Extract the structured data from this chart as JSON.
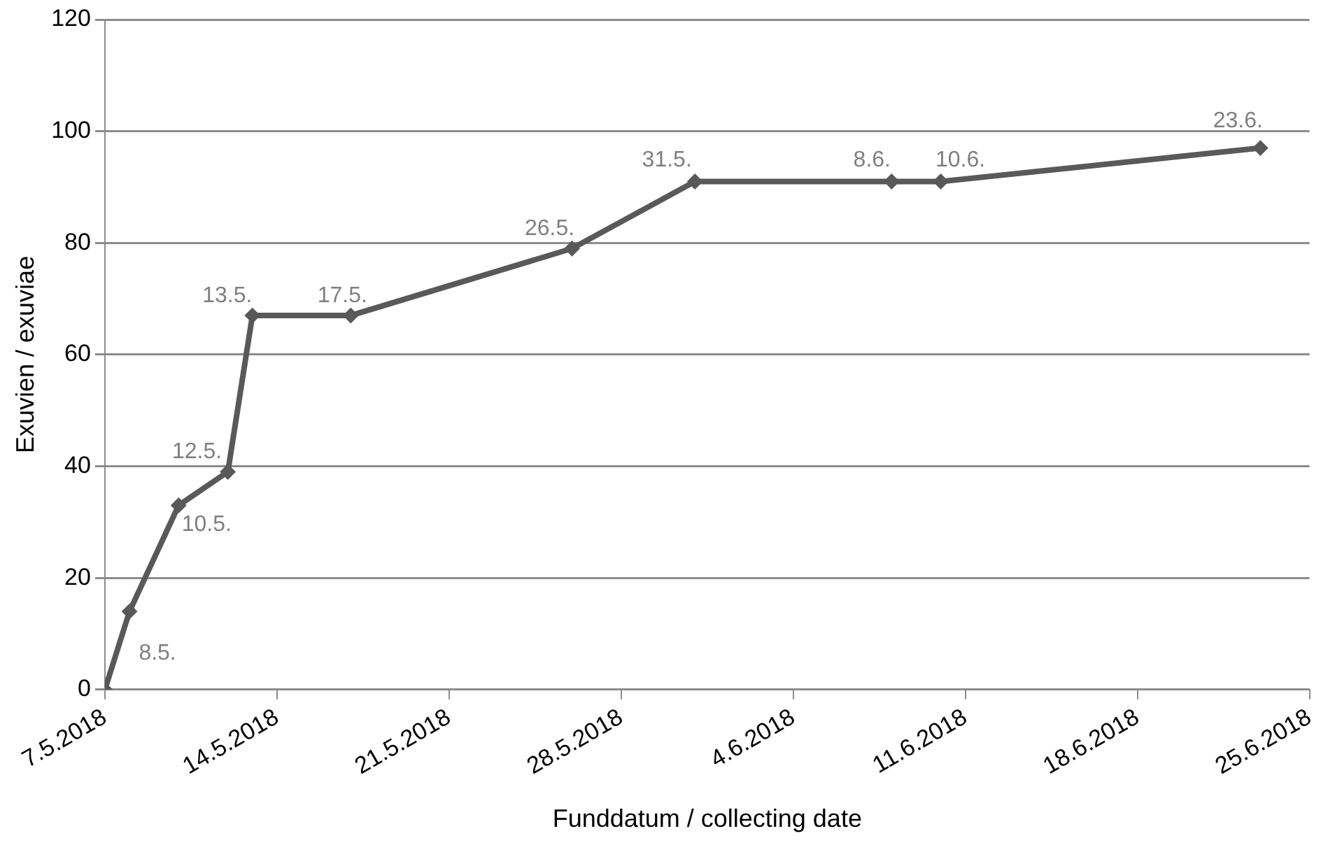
{
  "chart_data": {
    "type": "line",
    "xlabel": "Funddatum / collecting date",
    "ylabel": "Exuvien / exuviae",
    "x": [
      "2018-05-07",
      "2018-05-08",
      "2018-05-10",
      "2018-05-12",
      "2018-05-13",
      "2018-05-17",
      "2018-05-26",
      "2018-05-31",
      "2018-06-08",
      "2018-06-10",
      "2018-06-23"
    ],
    "series": [
      {
        "color": "#595959",
        "values": [
          0,
          14,
          33,
          39,
          67,
          67,
          79,
          91,
          91,
          91,
          97
        ]
      }
    ],
    "xlim": [
      "2018-05-07",
      "2018-06-25"
    ],
    "xticks": [
      {
        "value": "2018-05-07",
        "label": "7.5.2018"
      },
      {
        "value": "2018-05-14",
        "label": "14.5.2018"
      },
      {
        "value": "2018-05-21",
        "label": "21.5.2018"
      },
      {
        "value": "2018-05-28",
        "label": "28.5.2018"
      },
      {
        "value": "2018-06-04",
        "label": "4.6.2018"
      },
      {
        "value": "2018-06-11",
        "label": "11.6.2018"
      },
      {
        "value": "2018-06-18",
        "label": "18.6.2018"
      },
      {
        "value": "2018-06-25",
        "label": "25.6.2018"
      }
    ],
    "ylim": [
      0,
      120
    ],
    "yticks": [
      0,
      20,
      40,
      60,
      80,
      100,
      120
    ],
    "grid": "y",
    "legend": false,
    "marker": "diamond",
    "line_style": "solid",
    "annotations": [
      {
        "text": "8.5.",
        "x": "2018-05-08",
        "y": 14
      },
      {
        "text": "10.5.",
        "x": "2018-05-10",
        "y": 33
      },
      {
        "text": "12.5.",
        "x": "2018-05-12",
        "y": 39
      },
      {
        "text": "13.5.",
        "x": "2018-05-13",
        "y": 67
      },
      {
        "text": "17.5.",
        "x": "2018-05-17",
        "y": 67
      },
      {
        "text": "26.5.",
        "x": "2018-05-26",
        "y": 79
      },
      {
        "text": "31.5.",
        "x": "2018-05-31",
        "y": 91
      },
      {
        "text": "8.6.",
        "x": "2018-06-08",
        "y": 91
      },
      {
        "text": "10.6.",
        "x": "2018-06-10",
        "y": 91
      },
      {
        "text": "23.6.",
        "x": "2018-06-23",
        "y": 97
      }
    ]
  }
}
